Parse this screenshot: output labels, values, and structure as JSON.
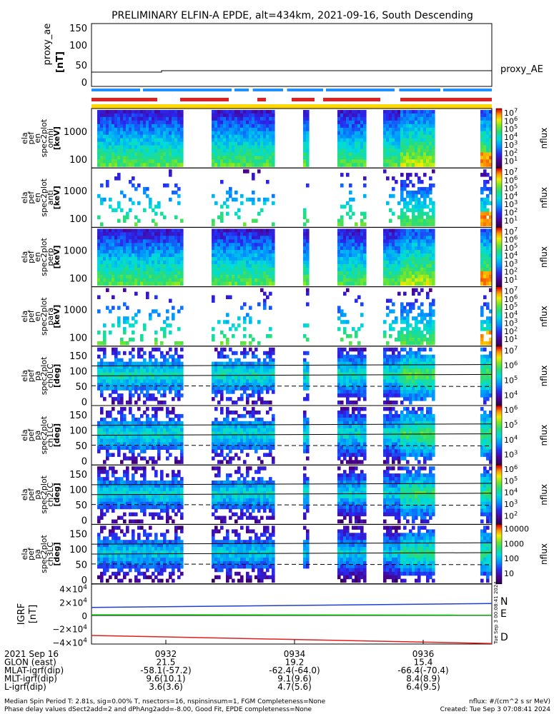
{
  "title": "PRELIMINARY ELFIN-A EPDE, alt=434km, 2021-09-16, South Descending",
  "proxy_ae": {
    "ylabel": [
      "proxy_ae",
      "[nT]"
    ],
    "yticks": [
      "150",
      "100",
      "50",
      "0"
    ],
    "legend": "proxy_AE"
  },
  "spectrogram_panels": [
    {
      "label": [
        "ela",
        "pef",
        "en",
        "spec2plot",
        "omni",
        "[keV]"
      ],
      "kind": "energy",
      "yticks": [
        "1000",
        "100"
      ],
      "cbar_ticks": [
        "10^7",
        "10^6",
        "10^5",
        "10^4",
        "10^3",
        "10^2",
        "10^1"
      ],
      "cbar_label": "nflux"
    },
    {
      "label": [
        "ela",
        "pef",
        "en",
        "spec2plot",
        "anti",
        "[keV]"
      ],
      "kind": "energy",
      "yticks": [
        "1000",
        "100"
      ],
      "cbar_ticks": [
        "10^7",
        "10^6",
        "10^5",
        "10^4",
        "10^3",
        "10^2",
        "10^1"
      ],
      "cbar_label": "nflux"
    },
    {
      "label": [
        "ela",
        "pef",
        "en",
        "spec2plot",
        "perp",
        "[keV]"
      ],
      "kind": "energy",
      "yticks": [
        "1000",
        "100"
      ],
      "cbar_ticks": [
        "10^7",
        "10^6",
        "10^5",
        "10^4",
        "10^3",
        "10^2",
        "10^1"
      ],
      "cbar_label": "nflux"
    },
    {
      "label": [
        "ela",
        "pef",
        "en",
        "spec2plot",
        "para",
        "[keV]"
      ],
      "kind": "energy",
      "yticks": [
        "1000",
        "100"
      ],
      "cbar_ticks": [
        "10^7",
        "10^6",
        "10^5",
        "10^4",
        "10^3",
        "10^2",
        "10^1"
      ],
      "cbar_label": "nflux"
    },
    {
      "label": [
        "ela",
        "pef",
        "pa",
        "spec2plot",
        "ch0LC",
        "[deg]"
      ],
      "kind": "pitch",
      "yticks": [
        "150",
        "100",
        "50",
        "0"
      ],
      "cbar_ticks": [
        "10^7",
        "10^6",
        "10^5",
        "10^4"
      ],
      "cbar_label": "nflux"
    },
    {
      "label": [
        "ela",
        "pef",
        "pa",
        "spec2plot",
        "ch1LC",
        "[deg]"
      ],
      "kind": "pitch",
      "yticks": [
        "150",
        "100",
        "50",
        "0"
      ],
      "cbar_ticks": [
        "10^6",
        "10^5",
        "10^4",
        "10^3"
      ],
      "cbar_label": "nflux"
    },
    {
      "label": [
        "ela",
        "pef",
        "pa",
        "spec2plot",
        "ch2LC",
        "[deg]"
      ],
      "kind": "pitch",
      "yticks": [
        "150",
        "100",
        "50",
        "0"
      ],
      "cbar_ticks": [
        "10^6",
        "10^5",
        "10^4",
        "10^3",
        "10^2"
      ],
      "cbar_label": "nflux"
    },
    {
      "label": [
        "ela",
        "pef",
        "pa",
        "spec2plot",
        "ch3LC",
        "[deg]"
      ],
      "kind": "pitch",
      "yticks": [
        "150",
        "100",
        "50",
        "0"
      ],
      "cbar_ticks": [
        "10000",
        "1000",
        "100",
        "10"
      ],
      "cbar_label": "nflux"
    }
  ],
  "igrf_panel": {
    "ylabel": [
      "IGRF",
      "[nT]"
    ],
    "yticks": [
      "4×10^4",
      "2×10^4",
      "0",
      "−2×10^4",
      "−4×10^4"
    ],
    "legend": [
      {
        "name": "N",
        "color": "#1f3fd0"
      },
      {
        "name": "E",
        "color": "#00c000"
      },
      {
        "name": "D",
        "color": "#e02020"
      }
    ],
    "stamp": "Tue Sep  3 00:08:41 2024"
  },
  "xticks": [
    "0932",
    "0934",
    "0936"
  ],
  "ephemeris": {
    "rows": [
      {
        "name": "2021 Sep 16",
        "values": [
          "0932",
          "0934",
          "0936"
        ]
      },
      {
        "name": "GLON (east)",
        "values": [
          "21.5",
          "19.2",
          "15.4"
        ]
      },
      {
        "name": "MLAT-igrf(dip)",
        "values": [
          "-58.1(-57.2)",
          "-62.4(-64.0)",
          "-66.4(-70.4)"
        ]
      },
      {
        "name": "MLT-igrf(dip)",
        "values": [
          "9.6(10.1)",
          "9.1(9.6)",
          "8.4(8.9)"
        ]
      },
      {
        "name": "L-igrf(dip)",
        "values": [
          "3.6(3.6)",
          "4.7(5.6)",
          "6.4(9.5)"
        ]
      }
    ]
  },
  "footer": {
    "line1_left": "Median Spin Period T: 2.81s, sig=0.00% T, nsectors=16, nspinsinsum=1, FGM Completeness=None",
    "line2_left": "Phase delay values dSect2add=2 and dPhAng2add=-8.00, Good Fit, EPDE completeness=None",
    "line1_right": "nflux: #/(cm^2 s sr MeV)",
    "line2_right": "Created: Tue Sep  3 07:08:41 2024"
  },
  "colors": {
    "status_blue": "#1e90ff",
    "status_red": "#e02020",
    "status_yellow": "#ffd700"
  },
  "chart_data": {
    "type": "heatmap",
    "time_axis": {
      "start": "09:30:30",
      "end": "09:37:30",
      "tick_labels": [
        "0932",
        "0934",
        "0936"
      ]
    },
    "proxy_ae": {
      "time_min": [
        0,
        1.5,
        7
      ],
      "values": [
        30,
        32,
        33
      ],
      "ylim": [
        0,
        150
      ]
    },
    "igrf": {
      "series": [
        {
          "name": "N",
          "time_min": [
            0,
            7
          ],
          "values": [
            12000,
            18000
          ]
        },
        {
          "name": "E",
          "time_min": [
            0,
            7
          ],
          "values": [
            1000,
            500
          ]
        },
        {
          "name": "D",
          "time_min": [
            0,
            7
          ],
          "values": [
            -30000,
            -42000
          ]
        }
      ],
      "ylim": [
        -45000,
        45000
      ]
    },
    "data_intervals_min": [
      [
        0.1,
        1.6
      ],
      [
        2.1,
        3.2
      ],
      [
        3.7,
        3.8
      ],
      [
        4.3,
        4.8
      ],
      [
        5.1,
        6.0
      ],
      [
        6.8,
        13.0
      ]
    ]
  }
}
